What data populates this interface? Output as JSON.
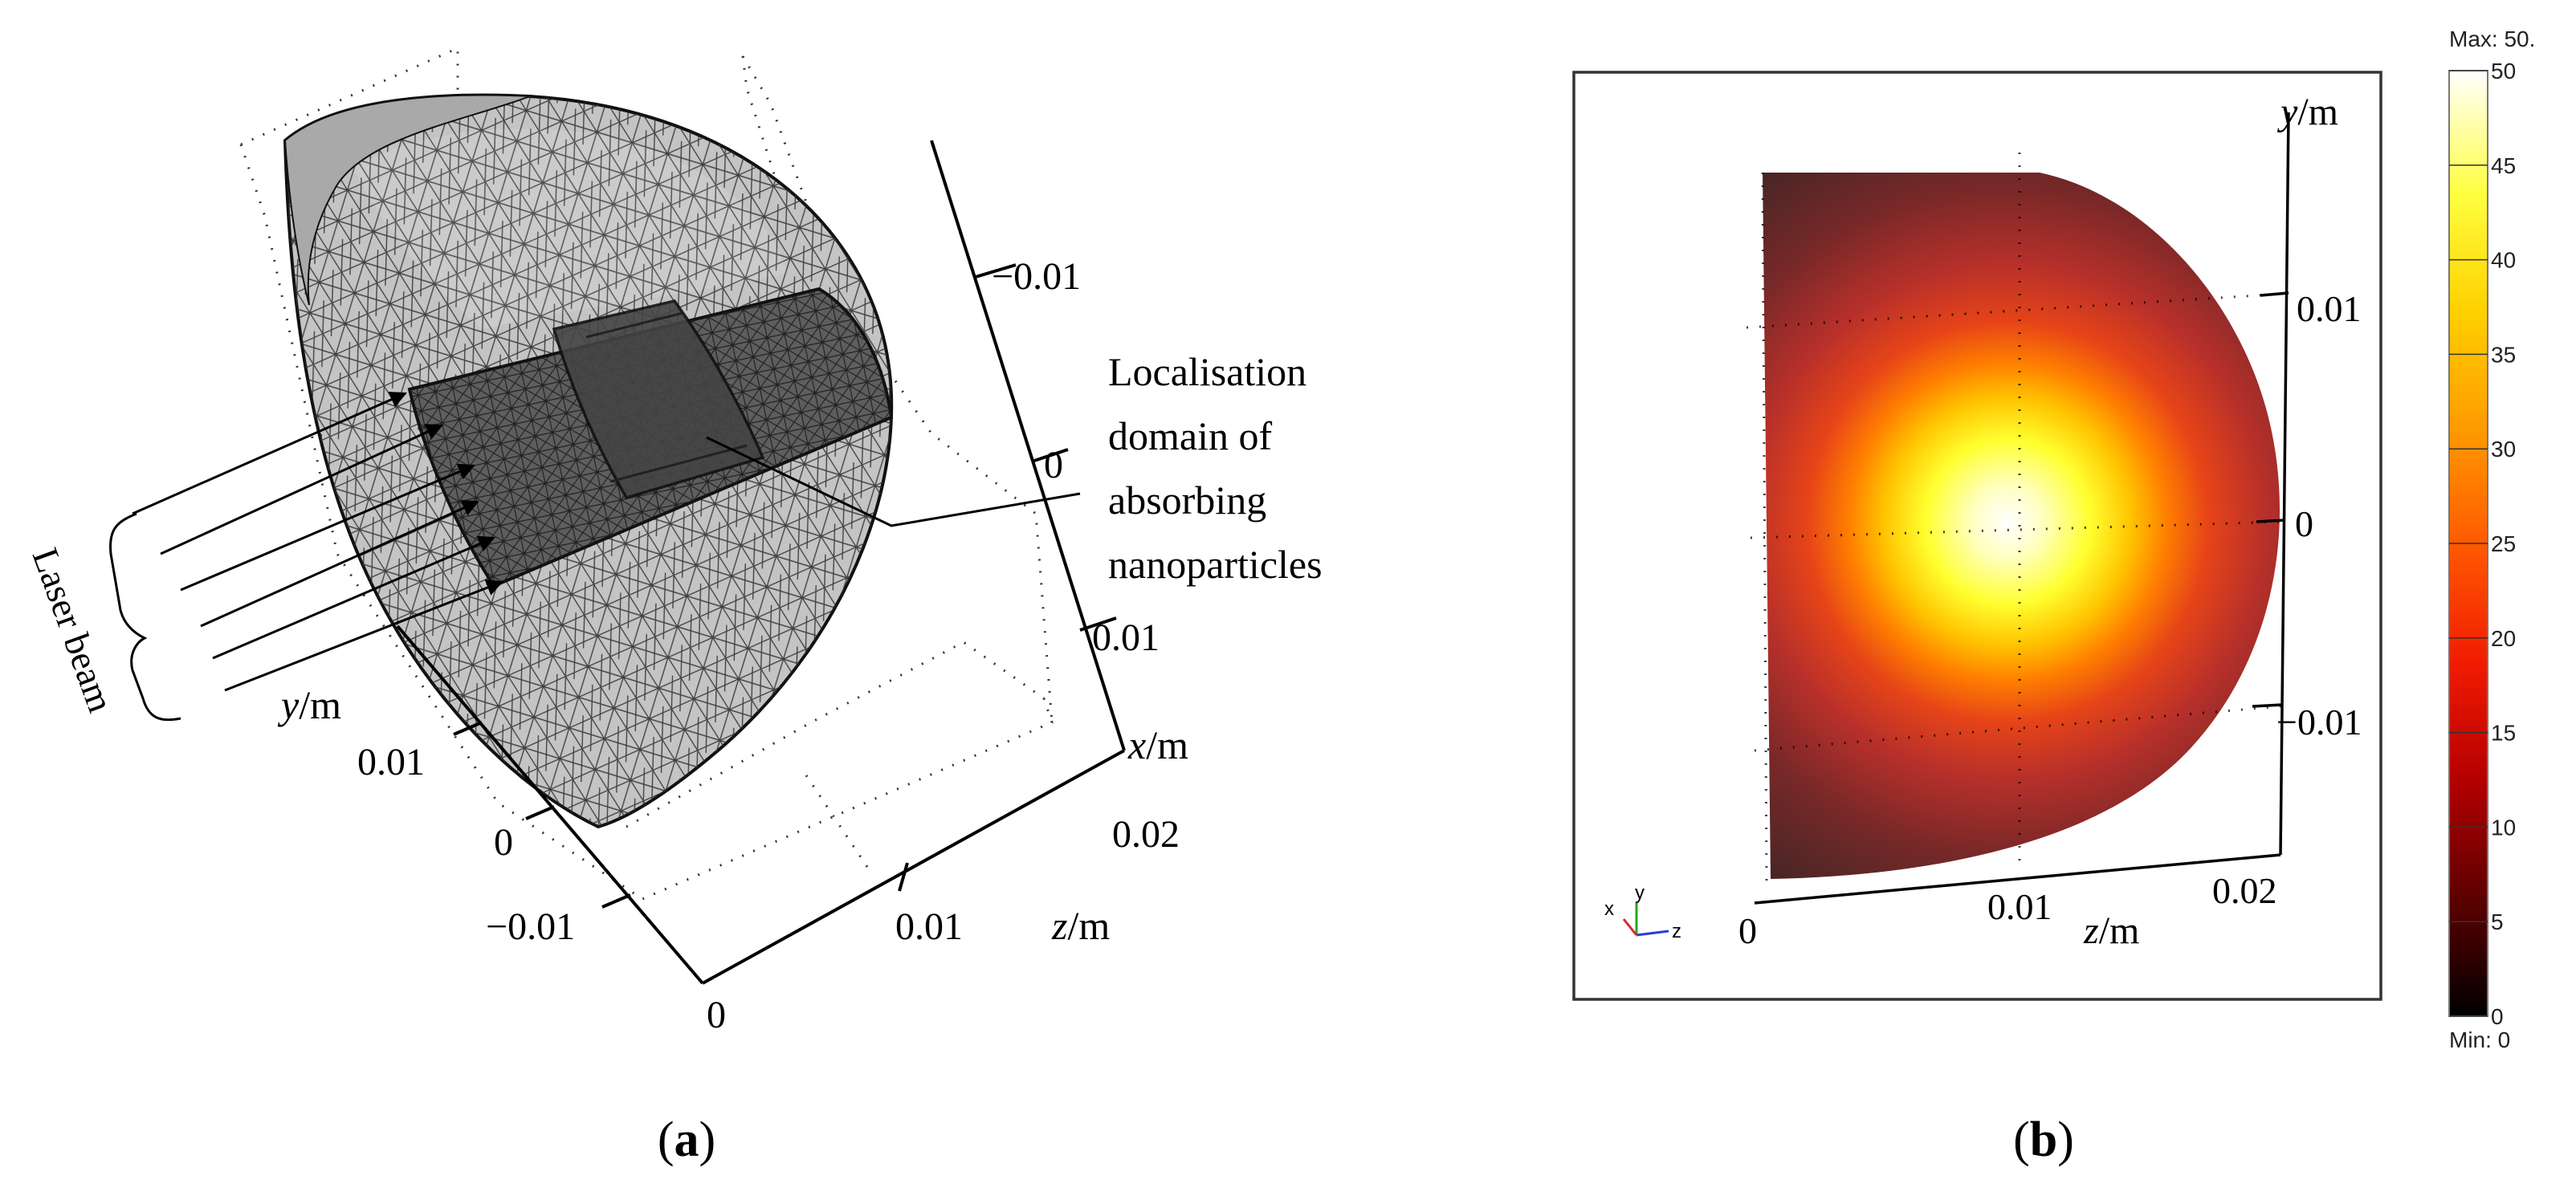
{
  "panel_a": {
    "caption": "(a)",
    "caption_letter": "a",
    "annotation": [
      "Localisation",
      "domain of",
      "absorbing",
      "nanoparticles"
    ],
    "laser_label": "Laser beam",
    "y_axis": {
      "label_var": "y",
      "label_unit": "/m",
      "ticks": [
        "0.01",
        "0",
        "−0.01"
      ]
    },
    "z_axis": {
      "label_var": "z",
      "label_unit": "/m",
      "ticks": [
        "0",
        "0.01"
      ]
    },
    "x_axis": {
      "label_var": "x",
      "label_unit": "/m",
      "ticks": [
        "−0.01",
        "0",
        "0.01",
        "0.02"
      ]
    }
  },
  "panel_b": {
    "caption": "(b)",
    "caption_letter": "b",
    "y_axis": {
      "label_var": "y",
      "label_unit": "/m",
      "ticks": [
        "0.01",
        "0",
        "−0.01"
      ]
    },
    "z_axis": {
      "label_var": "z",
      "label_unit": "/m",
      "ticks": [
        "0",
        "0.01",
        "0.02"
      ]
    },
    "triad": {
      "x": "x",
      "y": "y",
      "z": "z"
    },
    "colorbar": {
      "max_label": "Max: 50.",
      "min_label": "Min: 0",
      "ticks": [
        "50",
        "45",
        "40",
        "35",
        "30",
        "25",
        "20",
        "15",
        "10",
        "5",
        "0"
      ],
      "colors": [
        "#000000",
        "#5a0000",
        "#b40000",
        "#f01a00",
        "#ff5a00",
        "#ff9a00",
        "#ffd200",
        "#ffff40",
        "#ffffff"
      ]
    }
  }
}
